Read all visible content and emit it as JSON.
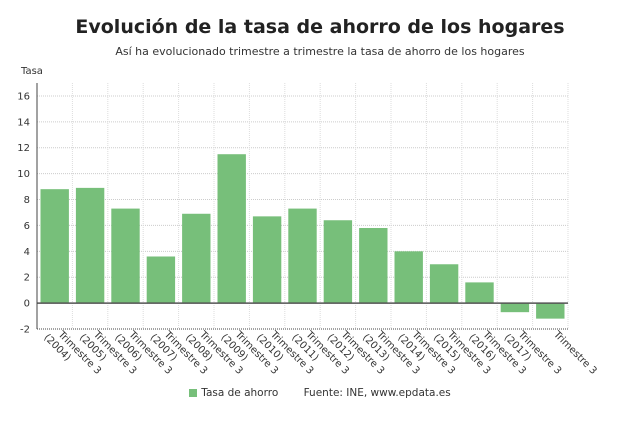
{
  "chart_data": {
    "type": "bar",
    "title": "Evolución de la tasa de ahorro de los hogares",
    "subtitle": "Así ha evolucionado trimestre a trimestre la tasa de ahorro de los hogares",
    "ylabel": "Tasa",
    "xlabel": "",
    "ylim": [
      -2,
      17
    ],
    "yticks": [
      -2,
      0,
      2,
      4,
      6,
      8,
      10,
      12,
      14,
      16
    ],
    "grid": true,
    "categories": [
      "Trimestre 3 (2004)",
      "Trimestre 3 (2005)",
      "Trimestre 3 (2006)",
      "Trimestre 3 (2007)",
      "Trimestre 3 (2008)",
      "Trimestre 3 (2009)",
      "Trimestre 3 (2010)",
      "Trimestre 3 (2011)",
      "Trimestre 3 (2012)",
      "Trimestre 3 (2013)",
      "Trimestre 3 (2014)",
      "Trimestre 3 (2015)",
      "Trimestre 3 (2016)",
      "Trimestre 3 (2017)",
      "Trimestre 3"
    ],
    "series": [
      {
        "name": "Tasa de ahorro",
        "color": "#77bf7a",
        "values": [
          8.8,
          8.9,
          7.3,
          3.6,
          6.9,
          11.5,
          6.7,
          7.3,
          6.4,
          5.8,
          4.0,
          3.0,
          1.6,
          -0.7,
          -1.2
        ]
      }
    ],
    "legend_position": "bottom",
    "source": "Fuente: INE, www.epdata.es"
  }
}
